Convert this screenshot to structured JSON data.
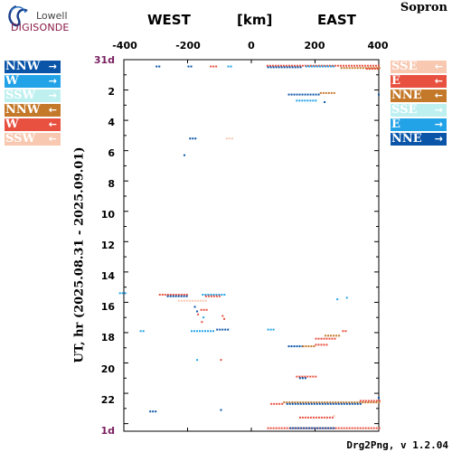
{
  "logo": {
    "line1": "Lowell",
    "line2": "DIGISONDE"
  },
  "station": "Sopron",
  "footer": "Drg2Png, v 1.2.04",
  "colors": {
    "NNW": "#0a55a8",
    "W": "#22a3e8",
    "SSW": "#bff0f0",
    "NNW_W": "#c4792a",
    "W_W": "#e85040",
    "SSW_W": "#f8c8b0",
    "SSE": "#f8c8b0",
    "E": "#e85040",
    "NNE": "#c4792a",
    "SSE_E": "#bff0f0",
    "E_E": "#22a3e8",
    "NNE_E": "#0a55a8"
  },
  "legend_left": [
    {
      "label": "NNW",
      "arrow": "→",
      "color": "#0a55a8",
      "text": "#ffffff"
    },
    {
      "label": "W",
      "arrow": "→",
      "color": "#22a3e8",
      "text": "#ffffff"
    },
    {
      "label": "SSW",
      "arrow": "→",
      "color": "#bff0f0",
      "text": "#ffffff"
    },
    {
      "label": "NNW",
      "arrow": "←",
      "color": "#c4792a",
      "text": "#ffffff"
    },
    {
      "label": "W",
      "arrow": "←",
      "color": "#e85040",
      "text": "#ffffff"
    },
    {
      "label": "SSW",
      "arrow": "←",
      "color": "#f8c8b0",
      "text": "#ffffff"
    }
  ],
  "legend_right": [
    {
      "label": "SSE",
      "arrow": "←",
      "color": "#f8c8b0",
      "text": "#ffffff"
    },
    {
      "label": "E",
      "arrow": "←",
      "color": "#e85040",
      "text": "#ffffff"
    },
    {
      "label": "NNE",
      "arrow": "←",
      "color": "#c4792a",
      "text": "#ffffff"
    },
    {
      "label": "SSE",
      "arrow": "→",
      "color": "#bff0f0",
      "text": "#ffffff"
    },
    {
      "label": "E",
      "arrow": "→",
      "color": "#22a3e8",
      "text": "#ffffff"
    },
    {
      "label": "NNE",
      "arrow": "→",
      "color": "#0a55a8",
      "text": "#ffffff"
    }
  ],
  "chart_data": {
    "type": "scatter",
    "title_left": "WEST",
    "title_unit": "[km]",
    "title_right": "EAST",
    "ylabel": "UT, hr (2025.08.31 - 2025.09.01)",
    "xlim": [
      -400,
      400
    ],
    "ylim": [
      0,
      24.5
    ],
    "x_ticks": [
      -400,
      -200,
      0,
      200,
      400
    ],
    "x_tick_labels": [
      "-400",
      "-200",
      "0",
      "200",
      "400"
    ],
    "y_tick_labels": [
      "31d",
      "2",
      "4",
      "6",
      "8",
      "10",
      "12",
      "14",
      "16",
      "18",
      "20",
      "22",
      "1d"
    ],
    "y_tick_values": [
      0,
      2,
      4,
      6,
      8,
      10,
      12,
      14,
      16,
      18,
      20,
      22,
      24.5
    ],
    "y_inverted": true,
    "segments": [
      {
        "x0": 48,
        "x1": 400,
        "y": 0.4,
        "color": "#e85040"
      },
      {
        "x0": 50,
        "x1": 160,
        "y": 0.5,
        "color": "#0a55a8"
      },
      {
        "x0": 170,
        "x1": 260,
        "y": 0.45,
        "color": "#22a3e8"
      },
      {
        "x0": 280,
        "x1": 400,
        "y": 0.55,
        "color": "#c4792a"
      },
      {
        "x0": 360,
        "x1": 400,
        "y": 0.6,
        "color": "#e85040"
      },
      {
        "x0": -300,
        "x1": -290,
        "y": 0.45,
        "color": "#0a55a8"
      },
      {
        "x0": -200,
        "x1": -190,
        "y": 0.45,
        "color": "#0a55a8"
      },
      {
        "x0": -130,
        "x1": -110,
        "y": 0.45,
        "color": "#e85040"
      },
      {
        "x0": -75,
        "x1": -65,
        "y": 0.45,
        "color": "#22a3e8"
      },
      {
        "x0": 115,
        "x1": 210,
        "y": 2.3,
        "color": "#0a55a8"
      },
      {
        "x0": 215,
        "x1": 260,
        "y": 2.2,
        "color": "#c4792a"
      },
      {
        "x0": 140,
        "x1": 200,
        "y": 2.7,
        "color": "#22a3e8"
      },
      {
        "x0": -195,
        "x1": -175,
        "y": 5.2,
        "color": "#0a55a8"
      },
      {
        "x0": -80,
        "x1": -60,
        "y": 5.2,
        "color": "#f8c8b0"
      },
      {
        "x0": -415,
        "x1": -390,
        "y": 15.4,
        "color": "#22a3e8"
      },
      {
        "x0": -290,
        "x1": -200,
        "y": 15.5,
        "color": "#e85040"
      },
      {
        "x0": -265,
        "x1": -200,
        "y": 15.6,
        "color": "#0a55a8"
      },
      {
        "x0": -155,
        "x1": -80,
        "y": 15.5,
        "color": "#22a3e8"
      },
      {
        "x0": -145,
        "x1": -100,
        "y": 15.6,
        "color": "#e85040"
      },
      {
        "x0": -230,
        "x1": -140,
        "y": 15.9,
        "color": "#f8c8b0"
      },
      {
        "x0": -180,
        "x1": -175,
        "y": 16.3,
        "color": "#0a55a8"
      },
      {
        "x0": -160,
        "x1": -140,
        "y": 16.5,
        "color": "#e85040"
      },
      {
        "x0": -170,
        "x1": -165,
        "y": 16.8,
        "color": "#e85040"
      },
      {
        "x0": -190,
        "x1": -120,
        "y": 17.9,
        "color": "#22a3e8"
      },
      {
        "x0": -110,
        "x1": -75,
        "y": 17.8,
        "color": "#0a55a8"
      },
      {
        "x0": -350,
        "x1": -340,
        "y": 17.9,
        "color": "#22a3e8"
      },
      {
        "x0": 50,
        "x1": 75,
        "y": 17.8,
        "color": "#22a3e8"
      },
      {
        "x0": 285,
        "x1": 300,
        "y": 17.9,
        "color": "#e85040"
      },
      {
        "x0": 230,
        "x1": 275,
        "y": 18.2,
        "color": "#c4792a"
      },
      {
        "x0": 200,
        "x1": 260,
        "y": 18.4,
        "color": "#e85040"
      },
      {
        "x0": 115,
        "x1": 160,
        "y": 18.9,
        "color": "#0a55a8"
      },
      {
        "x0": 160,
        "x1": 200,
        "y": 18.9,
        "color": "#c4792a"
      },
      {
        "x0": 200,
        "x1": 240,
        "y": 18.8,
        "color": "#e85040"
      },
      {
        "x0": 140,
        "x1": 200,
        "y": 20.9,
        "color": "#e85040"
      },
      {
        "x0": 150,
        "x1": 170,
        "y": 21.0,
        "color": "#0a55a8"
      },
      {
        "x0": 60,
        "x1": 100,
        "y": 22.7,
        "color": "#e85040"
      },
      {
        "x0": 100,
        "x1": 400,
        "y": 22.6,
        "color": "#c4792a"
      },
      {
        "x0": 110,
        "x1": 340,
        "y": 22.7,
        "color": "#0a55a8"
      },
      {
        "x0": 340,
        "x1": 400,
        "y": 22.5,
        "color": "#e85040"
      },
      {
        "x0": 150,
        "x1": 260,
        "y": 23.6,
        "color": "#e85040"
      },
      {
        "x0": -320,
        "x1": -300,
        "y": 23.2,
        "color": "#0a55a8"
      },
      {
        "x0": 50,
        "x1": 400,
        "y": 24.3,
        "color": "#e85040"
      },
      {
        "x0": 120,
        "x1": 260,
        "y": 24.3,
        "color": "#0a55a8"
      }
    ],
    "points": [
      {
        "x": -170,
        "y": 16.6,
        "color": "#0a55a8"
      },
      {
        "x": -150,
        "y": 17.0,
        "color": "#22a3e8"
      },
      {
        "x": -155,
        "y": 17.3,
        "color": "#e85040"
      },
      {
        "x": -90,
        "y": 16.9,
        "color": "#e85040"
      },
      {
        "x": -85,
        "y": 17.1,
        "color": "#e85040"
      },
      {
        "x": -95,
        "y": 19.8,
        "color": "#e85040"
      },
      {
        "x": -170,
        "y": 19.8,
        "color": "#22a3e8"
      },
      {
        "x": -210,
        "y": 6.3,
        "color": "#0a55a8"
      },
      {
        "x": 270,
        "y": 15.8,
        "color": "#22a3e8"
      },
      {
        "x": 300,
        "y": 15.7,
        "color": "#22a3e8"
      },
      {
        "x": -95,
        "y": 23.1,
        "color": "#0a55a8"
      },
      {
        "x": 260,
        "y": 23.5,
        "color": "#f8c8b0"
      },
      {
        "x": 400,
        "y": 22.3,
        "color": "#0a55a8"
      },
      {
        "x": 400,
        "y": 2.3,
        "color": "#0a55a8"
      },
      {
        "x": 230,
        "y": 2.8,
        "color": "#0a55a8"
      }
    ]
  }
}
